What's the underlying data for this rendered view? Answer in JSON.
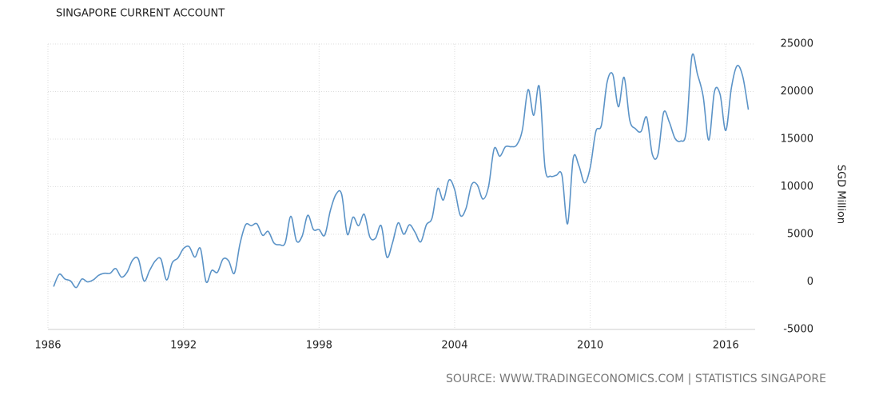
{
  "chart_data": {
    "type": "line",
    "title": "SINGAPORE CURRENT ACCOUNT",
    "y_label": "SGD Million",
    "source": "SOURCE:  WWW.TRADINGECONOMICS.COM  |  STATISTICS SINGAPORE",
    "x": [
      1986.25,
      1986.5,
      1986.75,
      1987,
      1987.25,
      1987.5,
      1987.75,
      1988,
      1988.25,
      1988.5,
      1988.75,
      1989,
      1989.25,
      1989.5,
      1989.75,
      1990,
      1990.25,
      1990.5,
      1990.75,
      1991,
      1991.25,
      1991.5,
      1991.75,
      1992,
      1992.25,
      1992.5,
      1992.75,
      1993,
      1993.25,
      1993.5,
      1993.75,
      1994,
      1994.25,
      1994.5,
      1994.75,
      1995,
      1995.25,
      1995.5,
      1995.75,
      1996,
      1996.25,
      1996.5,
      1996.75,
      1997,
      1997.25,
      1997.5,
      1997.75,
      1998,
      1998.25,
      1998.5,
      1998.75,
      1999,
      1999.25,
      1999.5,
      1999.75,
      2000,
      2000.25,
      2000.5,
      2000.75,
      2001,
      2001.25,
      2001.5,
      2001.75,
      2002,
      2002.25,
      2002.5,
      2002.75,
      2003,
      2003.25,
      2003.5,
      2003.75,
      2004,
      2004.25,
      2004.5,
      2004.75,
      2005,
      2005.25,
      2005.5,
      2005.75,
      2006,
      2006.25,
      2006.5,
      2006.75,
      2007,
      2007.25,
      2007.5,
      2007.75,
      2008,
      2008.25,
      2008.5,
      2008.75,
      2009,
      2009.25,
      2009.5,
      2009.75,
      2010,
      2010.25,
      2010.5,
      2010.75,
      2011,
      2011.25,
      2011.5,
      2011.75,
      2012,
      2012.25,
      2012.5,
      2012.75,
      2013,
      2013.25,
      2013.5,
      2013.75,
      2014,
      2014.25,
      2014.5,
      2014.75,
      2015,
      2015.25,
      2015.5,
      2015.75,
      2016,
      2016.25,
      2016.5,
      2016.75,
      2017
    ],
    "series": [
      {
        "name": "Current Account",
        "color": "#5b93c7",
        "values": [
          -500,
          800,
          300,
          100,
          -600,
          300,
          0,
          200,
          700,
          900,
          900,
          1400,
          500,
          1000,
          2300,
          2400,
          100,
          1200,
          2200,
          2400,
          200,
          2000,
          2500,
          3500,
          3700,
          2600,
          3500,
          0,
          1200,
          1000,
          2400,
          2200,
          900,
          4000,
          6000,
          5900,
          6100,
          4900,
          5300,
          4100,
          3900,
          4100,
          6900,
          4300,
          4800,
          7000,
          5500,
          5500,
          4900,
          7500,
          9200,
          9200,
          5000,
          6800,
          5900,
          7100,
          4700,
          4600,
          5900,
          2600,
          4100,
          6200,
          5000,
          6000,
          5200,
          4200,
          6000,
          6700,
          9800,
          8600,
          10700,
          9700,
          7000,
          7700,
          10200,
          10200,
          8700,
          10000,
          14000,
          13200,
          14200,
          14200,
          14400,
          16000,
          20200,
          17500,
          20500,
          12000,
          11100,
          11200,
          11200,
          6100,
          13000,
          12200,
          10400,
          12000,
          15800,
          16500,
          21000,
          21800,
          18400,
          21500,
          17000,
          16100,
          15800,
          17300,
          13400,
          13400,
          17800,
          16800,
          15100,
          14800,
          15800,
          23700,
          21800,
          19500,
          14900,
          20000,
          19700,
          15900,
          20400,
          22700,
          21600,
          18100
        ]
      }
    ],
    "xlim": [
      1986,
      2017.3
    ],
    "xticks": [
      1986,
      1992,
      1998,
      2004,
      2010,
      2016
    ],
    "ylim": [
      -5000,
      25000
    ],
    "yticks": [
      -5000,
      0,
      5000,
      10000,
      15000,
      20000,
      25000
    ],
    "grid": true
  }
}
